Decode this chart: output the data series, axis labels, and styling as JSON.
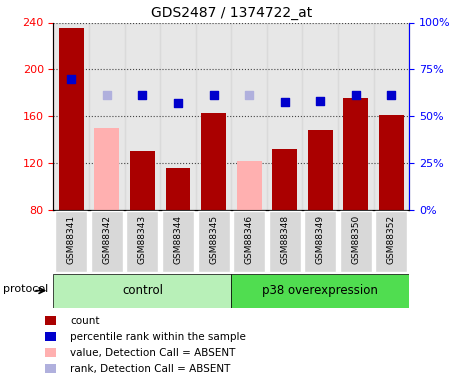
{
  "title": "GDS2487 / 1374722_at",
  "samples": [
    "GSM88341",
    "GSM88342",
    "GSM88343",
    "GSM88344",
    "GSM88345",
    "GSM88346",
    "GSM88348",
    "GSM88349",
    "GSM88350",
    "GSM88352"
  ],
  "counts": [
    235,
    null,
    130,
    116,
    163,
    null,
    132,
    148,
    176,
    161
  ],
  "counts_absent": [
    null,
    150,
    null,
    null,
    null,
    122,
    null,
    null,
    null,
    null
  ],
  "ranks_left": [
    192,
    null,
    178,
    171,
    178,
    null,
    172,
    173,
    178,
    178
  ],
  "ranks_absent_left": [
    null,
    178,
    null,
    null,
    null,
    178,
    null,
    null,
    null,
    null
  ],
  "groups": [
    "control",
    "control",
    "control",
    "control",
    "control",
    "p38 overexpression",
    "p38 overexpression",
    "p38 overexpression",
    "p38 overexpression",
    "p38 overexpression"
  ],
  "control_color": "#b8f0b8",
  "p38_color": "#50dd50",
  "protocol_label": "protocol",
  "ylim_left": [
    80,
    240
  ],
  "ylim_right": [
    0,
    100
  ],
  "yticks_left": [
    80,
    120,
    160,
    200,
    240
  ],
  "yticks_right": [
    0,
    25,
    50,
    75,
    100
  ],
  "bar_color_count": "#aa0000",
  "bar_color_absent": "#ffb0b0",
  "dot_color_rank": "#0000cc",
  "dot_color_rank_absent": "#b0b0dd",
  "col_bg_color": "#d8d8d8",
  "legend_items": [
    {
      "label": "count",
      "color": "#aa0000"
    },
    {
      "label": "percentile rank within the sample",
      "color": "#0000cc"
    },
    {
      "label": "value, Detection Call = ABSENT",
      "color": "#ffb0b0"
    },
    {
      "label": "rank, Detection Call = ABSENT",
      "color": "#b0b0dd"
    }
  ]
}
